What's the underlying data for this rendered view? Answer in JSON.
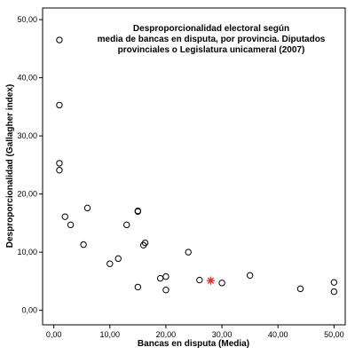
{
  "chart_data": {
    "type": "scatter",
    "title_lines": [
      "Desproporcionalidad electoral según",
      "media de bancas en disputa, por provincia. Diputados",
      "provinciales o Legislatura unicameral (2007)"
    ],
    "xlabel": "Bancas en disputa (Media)",
    "ylabel": "Desproporcionalidad (Gallagher index)",
    "xlim": [
      -2,
      52
    ],
    "ylim": [
      -2.5,
      52
    ],
    "x_ticks": [
      0,
      10,
      20,
      30,
      40,
      50
    ],
    "x_tick_labels": [
      "0,00",
      "10,00",
      "20,00",
      "30,00",
      "40,00",
      "50,00"
    ],
    "y_ticks": [
      0,
      10,
      20,
      30,
      40,
      50
    ],
    "y_tick_labels": [
      "0,00",
      "10,00",
      "20,00",
      "30,00",
      "40,00",
      "50,00"
    ],
    "grid": false,
    "series": [
      {
        "marker": "circle",
        "color": "#000000",
        "points": [
          {
            "x": 1.0,
            "y": 46.5
          },
          {
            "x": 1.0,
            "y": 35.3
          },
          {
            "x": 1.0,
            "y": 25.3
          },
          {
            "x": 1.0,
            "y": 24.1
          },
          {
            "x": 2.0,
            "y": 16.1
          },
          {
            "x": 3.0,
            "y": 14.7
          },
          {
            "x": 5.3,
            "y": 11.3
          },
          {
            "x": 6.0,
            "y": 17.6
          },
          {
            "x": 10.0,
            "y": 8.0
          },
          {
            "x": 11.5,
            "y": 8.9
          },
          {
            "x": 13.0,
            "y": 14.7
          },
          {
            "x": 15.0,
            "y": 17.1
          },
          {
            "x": 15.0,
            "y": 17.0
          },
          {
            "x": 15.0,
            "y": 4.0
          },
          {
            "x": 16.0,
            "y": 11.2
          },
          {
            "x": 16.3,
            "y": 11.6
          },
          {
            "x": 19.0,
            "y": 5.5
          },
          {
            "x": 20.0,
            "y": 5.8
          },
          {
            "x": 20.0,
            "y": 3.5
          },
          {
            "x": 24.0,
            "y": 10.0
          },
          {
            "x": 26.0,
            "y": 5.2
          },
          {
            "x": 30.0,
            "y": 4.7
          },
          {
            "x": 35.0,
            "y": 6.0
          },
          {
            "x": 44.0,
            "y": 3.7
          },
          {
            "x": 50.0,
            "y": 4.8
          },
          {
            "x": 50.0,
            "y": 3.2
          }
        ]
      },
      {
        "marker": "asterisk",
        "color": "#e03030",
        "points": [
          {
            "x": 28.0,
            "y": 5.1
          }
        ]
      }
    ]
  }
}
